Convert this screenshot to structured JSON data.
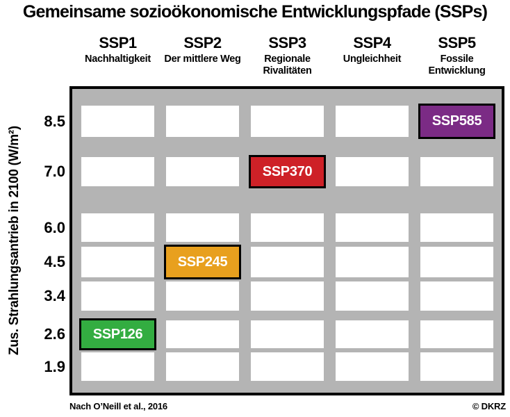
{
  "title": "Gemeinsame sozioökonomische Entwicklungspfade (SSPs)",
  "columns": [
    {
      "label": "SSP1",
      "subtitle": "Nachhaltigkeit"
    },
    {
      "label": "SSP2",
      "subtitle": "Der mittlere Weg"
    },
    {
      "label": "SSP3",
      "subtitle": "Regionale Rivalitäten"
    },
    {
      "label": "SSP4",
      "subtitle": "Ungleichheit"
    },
    {
      "label": "SSP5",
      "subtitle": "Fossile Entwicklung"
    }
  ],
  "y_axis": {
    "label": "Zus. Strahlungsantrieb in 2100 (W/m²)",
    "ticks": [
      "8.5",
      "7.0",
      "6.0",
      "4.5",
      "3.4",
      "2.6",
      "1.9"
    ]
  },
  "highlights": [
    {
      "row": 0,
      "col": 4,
      "label": "SSP585",
      "color": "#7b2b85"
    },
    {
      "row": 1,
      "col": 2,
      "label": "SSP370",
      "color": "#ce2127"
    },
    {
      "row": 3,
      "col": 1,
      "label": "SSP245",
      "color": "#e8a01e"
    },
    {
      "row": 5,
      "col": 0,
      "label": "SSP126",
      "color": "#33ad41"
    }
  ],
  "footer": {
    "source": "Nach O’Neill et al., 2016",
    "credit": "© DKRZ"
  },
  "colors": {
    "matrix_background": "#b4b4b4",
    "cell_background": "#ffffff",
    "border": "#000000",
    "ssp585": "#7b2b85",
    "ssp370": "#ce2127",
    "ssp245": "#e8a01e",
    "ssp126": "#33ad41"
  },
  "chart_data": {
    "type": "heatmap",
    "title": "Gemeinsame sozioökonomische Entwicklungspfade (SSPs)",
    "columns": [
      "SSP1",
      "SSP2",
      "SSP3",
      "SSP4",
      "SSP5"
    ],
    "column_subtitles": [
      "Nachhaltigkeit",
      "Der mittlere Weg",
      "Regionale Rivalitäten",
      "Ungleichheit",
      "Fossile Entwicklung"
    ],
    "rows": [
      8.5,
      7.0,
      6.0,
      4.5,
      3.4,
      2.6,
      1.9
    ],
    "ylabel": "Zus. Strahlungsantrieb in 2100 (W/m²)",
    "xlabel": "",
    "legend_position": "none",
    "grid": "7x5 matrix of white cells on gray background",
    "marked_cells": [
      {
        "row_value": 8.5,
        "column": "SSP5",
        "label": "SSP585",
        "color": "#7b2b85"
      },
      {
        "row_value": 7.0,
        "column": "SSP3",
        "label": "SSP370",
        "color": "#ce2127"
      },
      {
        "row_value": 4.5,
        "column": "SSP2",
        "label": "SSP245",
        "color": "#e8a01e"
      },
      {
        "row_value": 2.6,
        "column": "SSP1",
        "label": "SSP126",
        "color": "#33ad41"
      }
    ],
    "annotations": [
      "Nach O’Neill et al., 2016",
      "© DKRZ"
    ]
  }
}
